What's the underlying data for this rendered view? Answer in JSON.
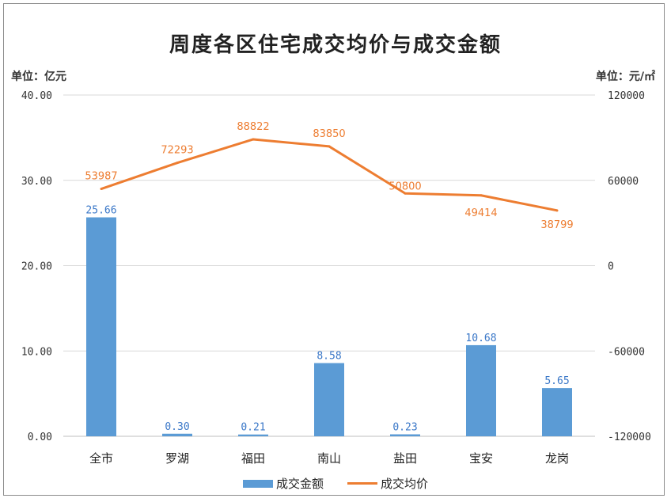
{
  "title": "周度各区住宅成交均价与成交金额",
  "unit_left": "单位：亿元",
  "unit_right": "单位：元/㎡",
  "colors": {
    "bar": "#5b9bd5",
    "line": "#ed7d31",
    "bar_label": "#3b78c8",
    "grid": "#d9d9d9"
  },
  "chart_data": {
    "type": "bar",
    "categories": [
      "全市",
      "罗湖",
      "福田",
      "南山",
      "盐田",
      "宝安",
      "龙岗"
    ],
    "series": [
      {
        "name": "成交金额",
        "type": "bar",
        "axis": "left",
        "values": [
          25.66,
          0.3,
          0.21,
          8.58,
          0.23,
          10.68,
          5.65
        ],
        "labels": [
          "25.66",
          "0.30",
          "0.21",
          "8.58",
          "0.23",
          "10.68",
          "5.65"
        ]
      },
      {
        "name": "成交均价",
        "type": "line",
        "axis": "right",
        "values": [
          53987,
          72293,
          88822,
          83850,
          50800,
          49414,
          38799
        ],
        "labels": [
          "53987",
          "72293",
          "88822",
          "83850",
          "50800",
          "49414",
          "38799"
        ]
      }
    ],
    "y_left": {
      "range": [
        0,
        40
      ],
      "ticks": [
        "0.00",
        "10.00",
        "20.00",
        "30.00",
        "40.00"
      ]
    },
    "y_right": {
      "range": [
        -120000,
        120000
      ],
      "ticks": [
        "-120000",
        "-60000",
        "0",
        "60000",
        "120000"
      ]
    },
    "grid": true,
    "legend": "bottom"
  }
}
